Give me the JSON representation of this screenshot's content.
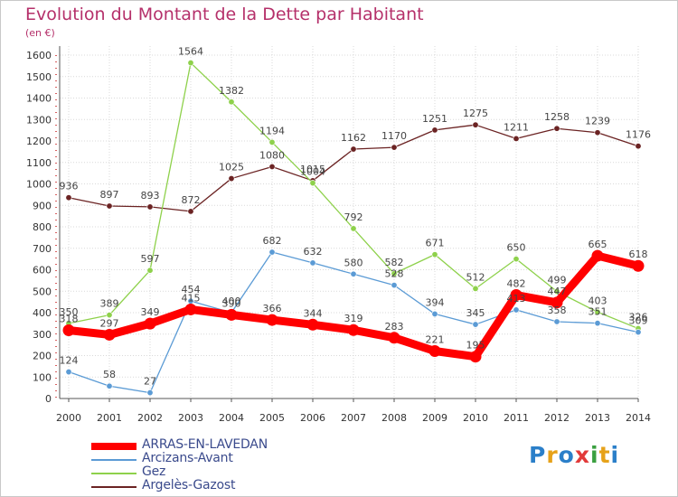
{
  "header": {
    "title": "Evolution du Montant de la Dette par Habitant",
    "unit": "(en €)"
  },
  "brand": {
    "logo_text": "Proxiti"
  },
  "chart_data": {
    "type": "line",
    "x": [
      "2000",
      "2001",
      "2002",
      "2003",
      "2004",
      "2005",
      "2006",
      "2007",
      "2008",
      "2009",
      "2010",
      "2011",
      "2012",
      "2013",
      "2014"
    ],
    "ylim": [
      0,
      1600
    ],
    "yticks": [
      0,
      100,
      200,
      300,
      400,
      500,
      600,
      700,
      800,
      900,
      1000,
      1100,
      1200,
      1300,
      1400,
      1500,
      1600
    ],
    "grid": true,
    "legend_position": "bottom-left",
    "series": [
      {
        "name": "ARRAS-EN-LAVEDAN",
        "color": "#ff0000",
        "values": [
          318,
          297,
          349,
          415,
          390,
          366,
          344,
          319,
          283,
          221,
          195,
          482,
          447,
          665,
          618
        ]
      },
      {
        "name": "Arcizans-Avant",
        "color": "#5b9bd5",
        "values": [
          124,
          58,
          27,
          454,
          400,
          682,
          632,
          580,
          528,
          394,
          345,
          413,
          358,
          351,
          309
        ]
      },
      {
        "name": "Gez",
        "color": "#8ed14b",
        "values": [
          350,
          389,
          597,
          1564,
          1382,
          1194,
          1004,
          792,
          582,
          671,
          512,
          650,
          499,
          403,
          326
        ]
      },
      {
        "name": "Argelès-Gazost",
        "color": "#6b2323",
        "values": [
          936,
          897,
          893,
          872,
          1025,
          1080,
          1015,
          1162,
          1170,
          1251,
          1275,
          1211,
          1258,
          1239,
          1176
        ]
      }
    ]
  }
}
